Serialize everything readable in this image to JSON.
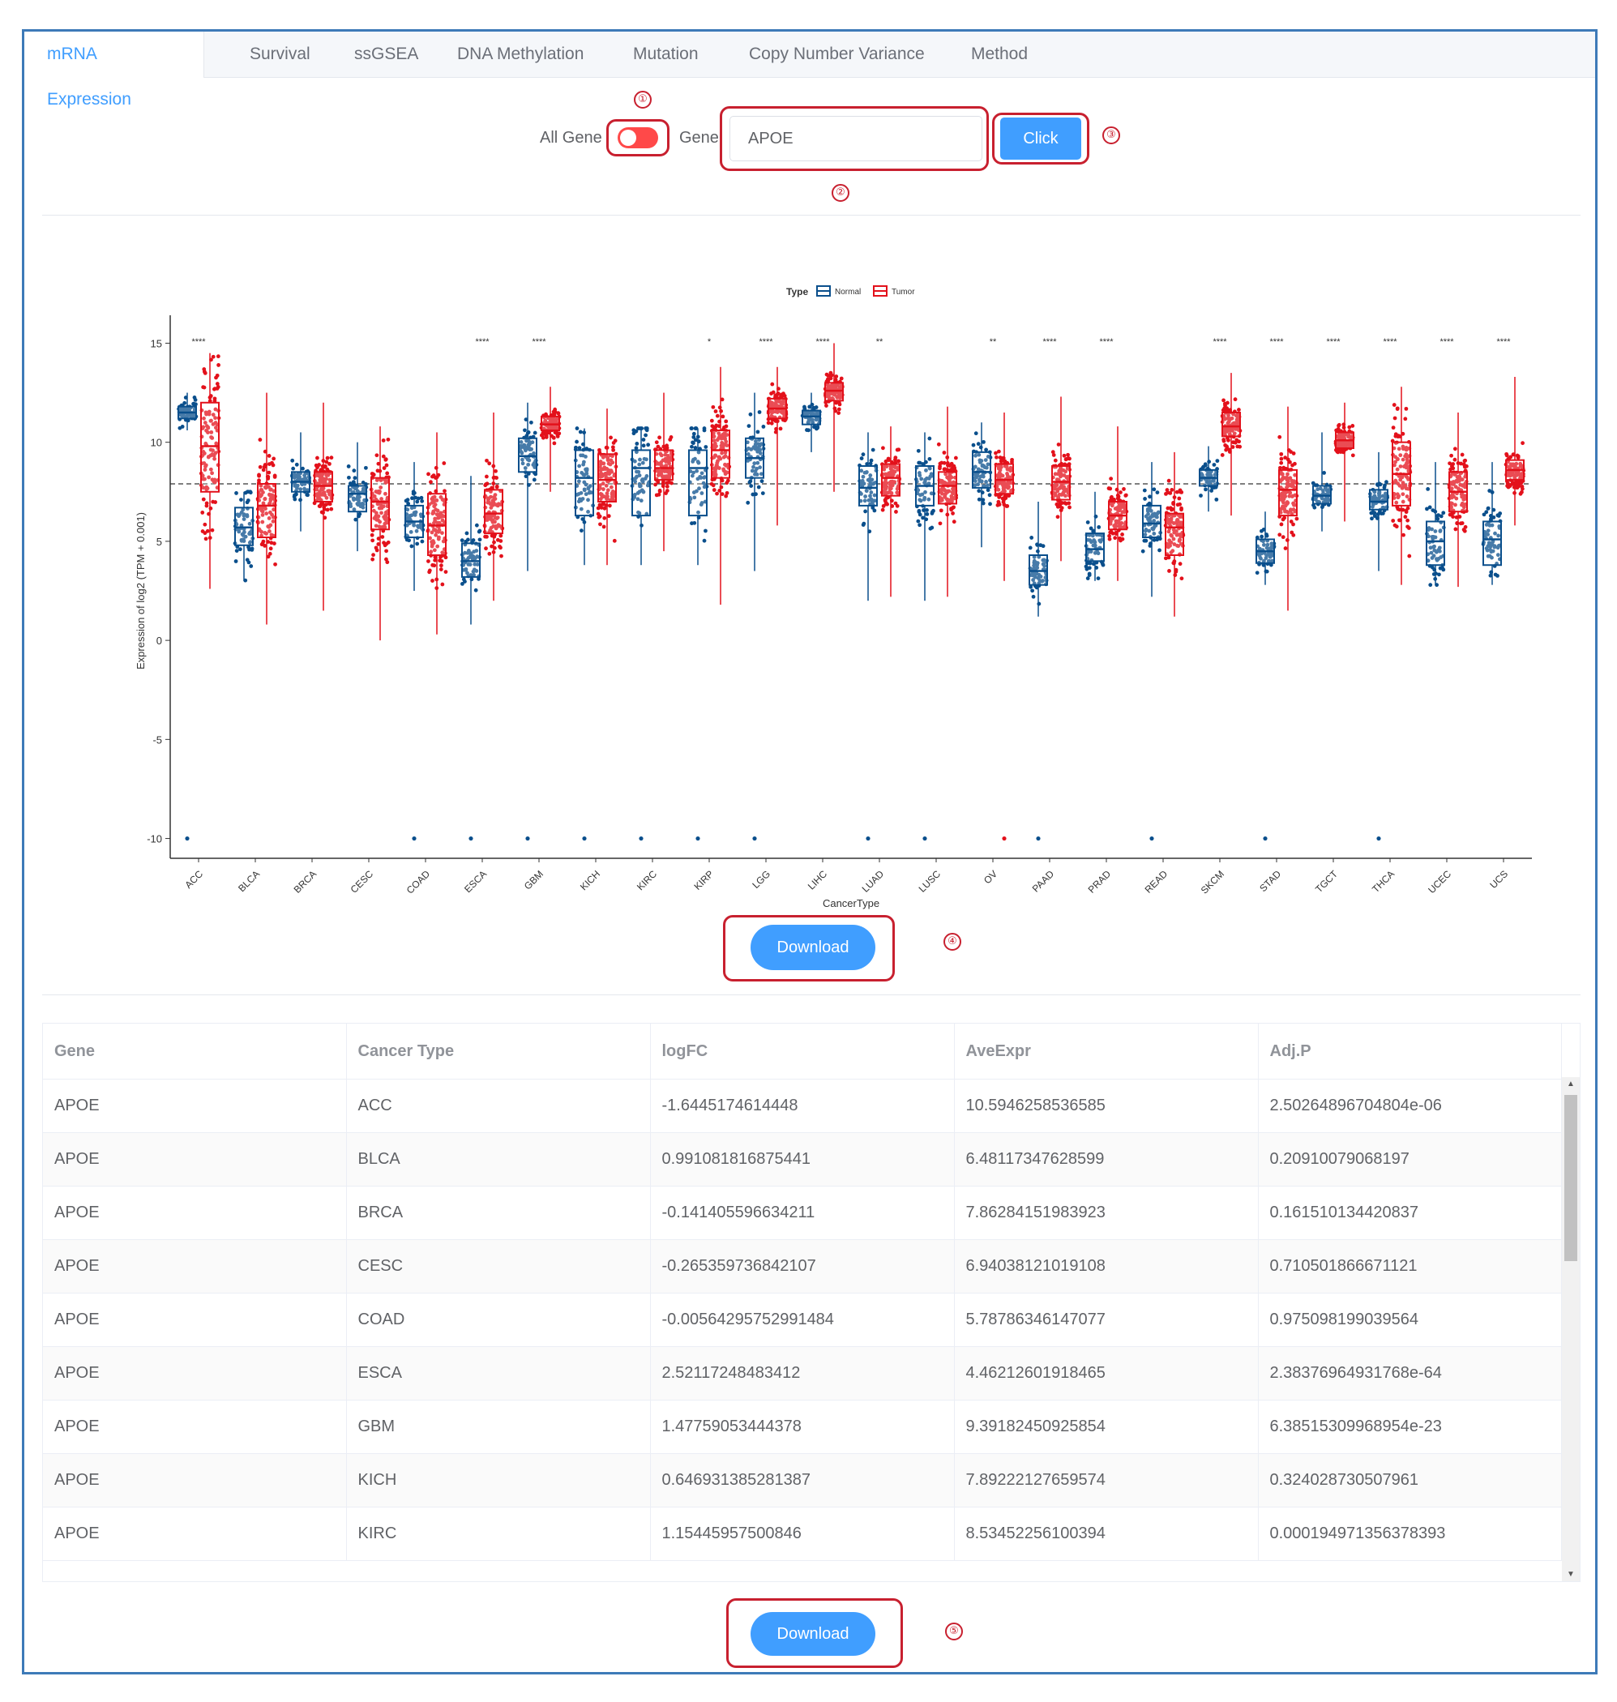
{
  "tabs": [
    "mRNA Expression",
    "Survival",
    "ssGSEA",
    "DNA Methylation",
    "Mutation",
    "Copy Number Variance",
    "Method"
  ],
  "controls": {
    "all_gene_label": "All Gene",
    "gene_label": "Gene",
    "gene_value": "APOE",
    "click_label": "Click",
    "switch_on": true
  },
  "annotations": [
    "①",
    "②",
    "③",
    "④",
    "⑤"
  ],
  "download_label": "Download",
  "chart_data": {
    "type": "box",
    "xlabel": "CancerType",
    "ylabel": "Expression of log2 (TPM + 0.001)",
    "ylim": [
      -11,
      16
    ],
    "yticks": [
      15,
      10,
      5,
      0,
      -5,
      -10
    ],
    "reference_line": 7.9,
    "legend": {
      "title": "Type",
      "entries": [
        "Normal",
        "Tumor"
      ],
      "position": "top-center"
    },
    "colors": {
      "Normal": "#0a4f8c",
      "Tumor": "#e3111b"
    },
    "categories": [
      "ACC",
      "BLCA",
      "BRCA",
      "CESC",
      "COAD",
      "ESCA",
      "GBM",
      "KICH",
      "KIRC",
      "KIRP",
      "LGG",
      "LIHC",
      "LUAD",
      "LUSC",
      "OV",
      "PAAD",
      "PRAD",
      "READ",
      "SKCM",
      "STAD",
      "TGCT",
      "THCA",
      "UCEC",
      "UCS"
    ],
    "significance": [
      "****",
      "",
      "",
      "",
      "",
      "****",
      "****",
      "",
      "",
      "*",
      "****",
      "****",
      "**",
      "",
      "**",
      "****",
      "****",
      "",
      "****",
      "****",
      "****",
      "****",
      "****",
      "****"
    ],
    "series": [
      {
        "name": "Normal",
        "boxes": [
          [
            10.6,
            11.2,
            11.5,
            11.8,
            12.5
          ],
          [
            3.0,
            4.8,
            5.7,
            6.7,
            7.5
          ],
          [
            5.5,
            7.5,
            8.0,
            8.5,
            10.5
          ],
          [
            4.5,
            6.5,
            7.4,
            7.8,
            10.0
          ],
          [
            2.5,
            5.2,
            6.0,
            6.8,
            9.0
          ],
          [
            0.8,
            3.2,
            4.0,
            4.9,
            8.3
          ],
          [
            3.5,
            8.5,
            9.3,
            10.2,
            12.0
          ],
          [
            3.8,
            6.3,
            8.2,
            9.6,
            10.7
          ],
          [
            3.8,
            6.3,
            8.7,
            9.6,
            10.7
          ],
          [
            3.8,
            6.3,
            8.7,
            9.6,
            10.7
          ],
          [
            3.5,
            8.2,
            9.2,
            10.2,
            12.5
          ],
          [
            9.5,
            10.9,
            11.3,
            11.6,
            12.5
          ],
          [
            2.0,
            6.8,
            7.7,
            8.8,
            10.5
          ],
          [
            2.0,
            6.8,
            7.8,
            8.8,
            10.5
          ],
          [
            4.7,
            7.7,
            8.5,
            9.5,
            11.0
          ],
          [
            1.2,
            2.8,
            3.5,
            4.3,
            7.0
          ],
          [
            3.0,
            4.0,
            4.6,
            5.4,
            7.5
          ],
          [
            2.2,
            5.2,
            5.9,
            6.8,
            9.0
          ],
          [
            6.5,
            7.8,
            8.2,
            8.6,
            9.8
          ],
          [
            2.8,
            3.9,
            4.5,
            5.1,
            6.5
          ],
          [
            5.5,
            6.9,
            7.3,
            7.8,
            10.5
          ],
          [
            3.5,
            6.6,
            7.0,
            7.6,
            9.5
          ],
          [
            2.8,
            3.8,
            5.0,
            6.0,
            9.0
          ],
          [
            2.8,
            3.8,
            5.1,
            6.0,
            9.0
          ]
        ]
      },
      {
        "name": "Tumor",
        "boxes": [
          [
            2.6,
            7.5,
            9.8,
            12.0,
            14.5
          ],
          [
            0.8,
            5.2,
            6.8,
            7.9,
            12.5
          ],
          [
            1.5,
            7.0,
            7.8,
            8.5,
            12.0
          ],
          [
            0,
            5.6,
            7.0,
            8.2,
            10.8
          ],
          [
            0.3,
            4.3,
            5.8,
            7.4,
            10.5
          ],
          [
            2.0,
            5.4,
            6.4,
            7.6,
            11.5
          ],
          [
            7.5,
            10.6,
            10.9,
            11.3,
            12.8
          ],
          [
            3.8,
            7.0,
            8.1,
            9.4,
            11.7
          ],
          [
            4.5,
            8.1,
            8.7,
            9.6,
            12.5
          ],
          [
            1.8,
            8.2,
            9.6,
            10.6,
            13.8
          ],
          [
            5.8,
            11.2,
            11.7,
            12.2,
            13.8
          ],
          [
            7.5,
            12.1,
            12.6,
            13.0,
            15.0
          ],
          [
            2.2,
            7.3,
            8.2,
            8.9,
            10.8
          ],
          [
            2.2,
            6.9,
            7.8,
            8.5,
            11.8
          ],
          [
            3.0,
            7.4,
            8.1,
            8.9,
            11.5
          ],
          [
            4.0,
            7.1,
            8.0,
            8.8,
            12.3
          ],
          [
            3.0,
            5.6,
            6.3,
            7.0,
            10.8
          ],
          [
            1.2,
            4.3,
            5.7,
            6.4,
            9.5
          ],
          [
            6.3,
            10.3,
            10.8,
            11.5,
            13.5
          ],
          [
            1.5,
            6.3,
            7.6,
            8.6,
            11.8
          ],
          [
            6.0,
            9.7,
            10.1,
            10.5,
            12.0
          ],
          [
            2.8,
            6.8,
            8.4,
            10.0,
            12.8
          ],
          [
            2.7,
            6.5,
            7.5,
            8.5,
            11.5
          ],
          [
            5.8,
            8.1,
            8.6,
            9.1,
            13.3
          ]
        ]
      }
    ]
  },
  "table": {
    "columns": [
      "Gene",
      "Cancer Type",
      "logFC",
      "AveExpr",
      "Adj.P"
    ],
    "rows": [
      [
        "APOE",
        "ACC",
        "-1.6445174614448",
        "10.5946258536585",
        "2.50264896704804e-06"
      ],
      [
        "APOE",
        "BLCA",
        "0.991081816875441",
        "6.48117347628599",
        "0.20910079068197"
      ],
      [
        "APOE",
        "BRCA",
        "-0.141405596634211",
        "7.86284151983923",
        "0.161510134420837"
      ],
      [
        "APOE",
        "CESC",
        "-0.265359736842107",
        "6.94038121019108",
        "0.710501866671121"
      ],
      [
        "APOE",
        "COAD",
        "-0.00564295752991484",
        "5.78786346147077",
        "0.975098199039564"
      ],
      [
        "APOE",
        "ESCA",
        "2.52117248483412",
        "4.46212601918465",
        "2.38376964931768e-64"
      ],
      [
        "APOE",
        "GBM",
        "1.47759053444378",
        "9.39182450925854",
        "6.38515309968954e-23"
      ],
      [
        "APOE",
        "KICH",
        "0.646931385281387",
        "7.89222127659574",
        "0.324028730507961"
      ],
      [
        "APOE",
        "KIRC",
        "1.15445957500846",
        "8.53452256100394",
        "0.000194971356378393"
      ]
    ]
  }
}
